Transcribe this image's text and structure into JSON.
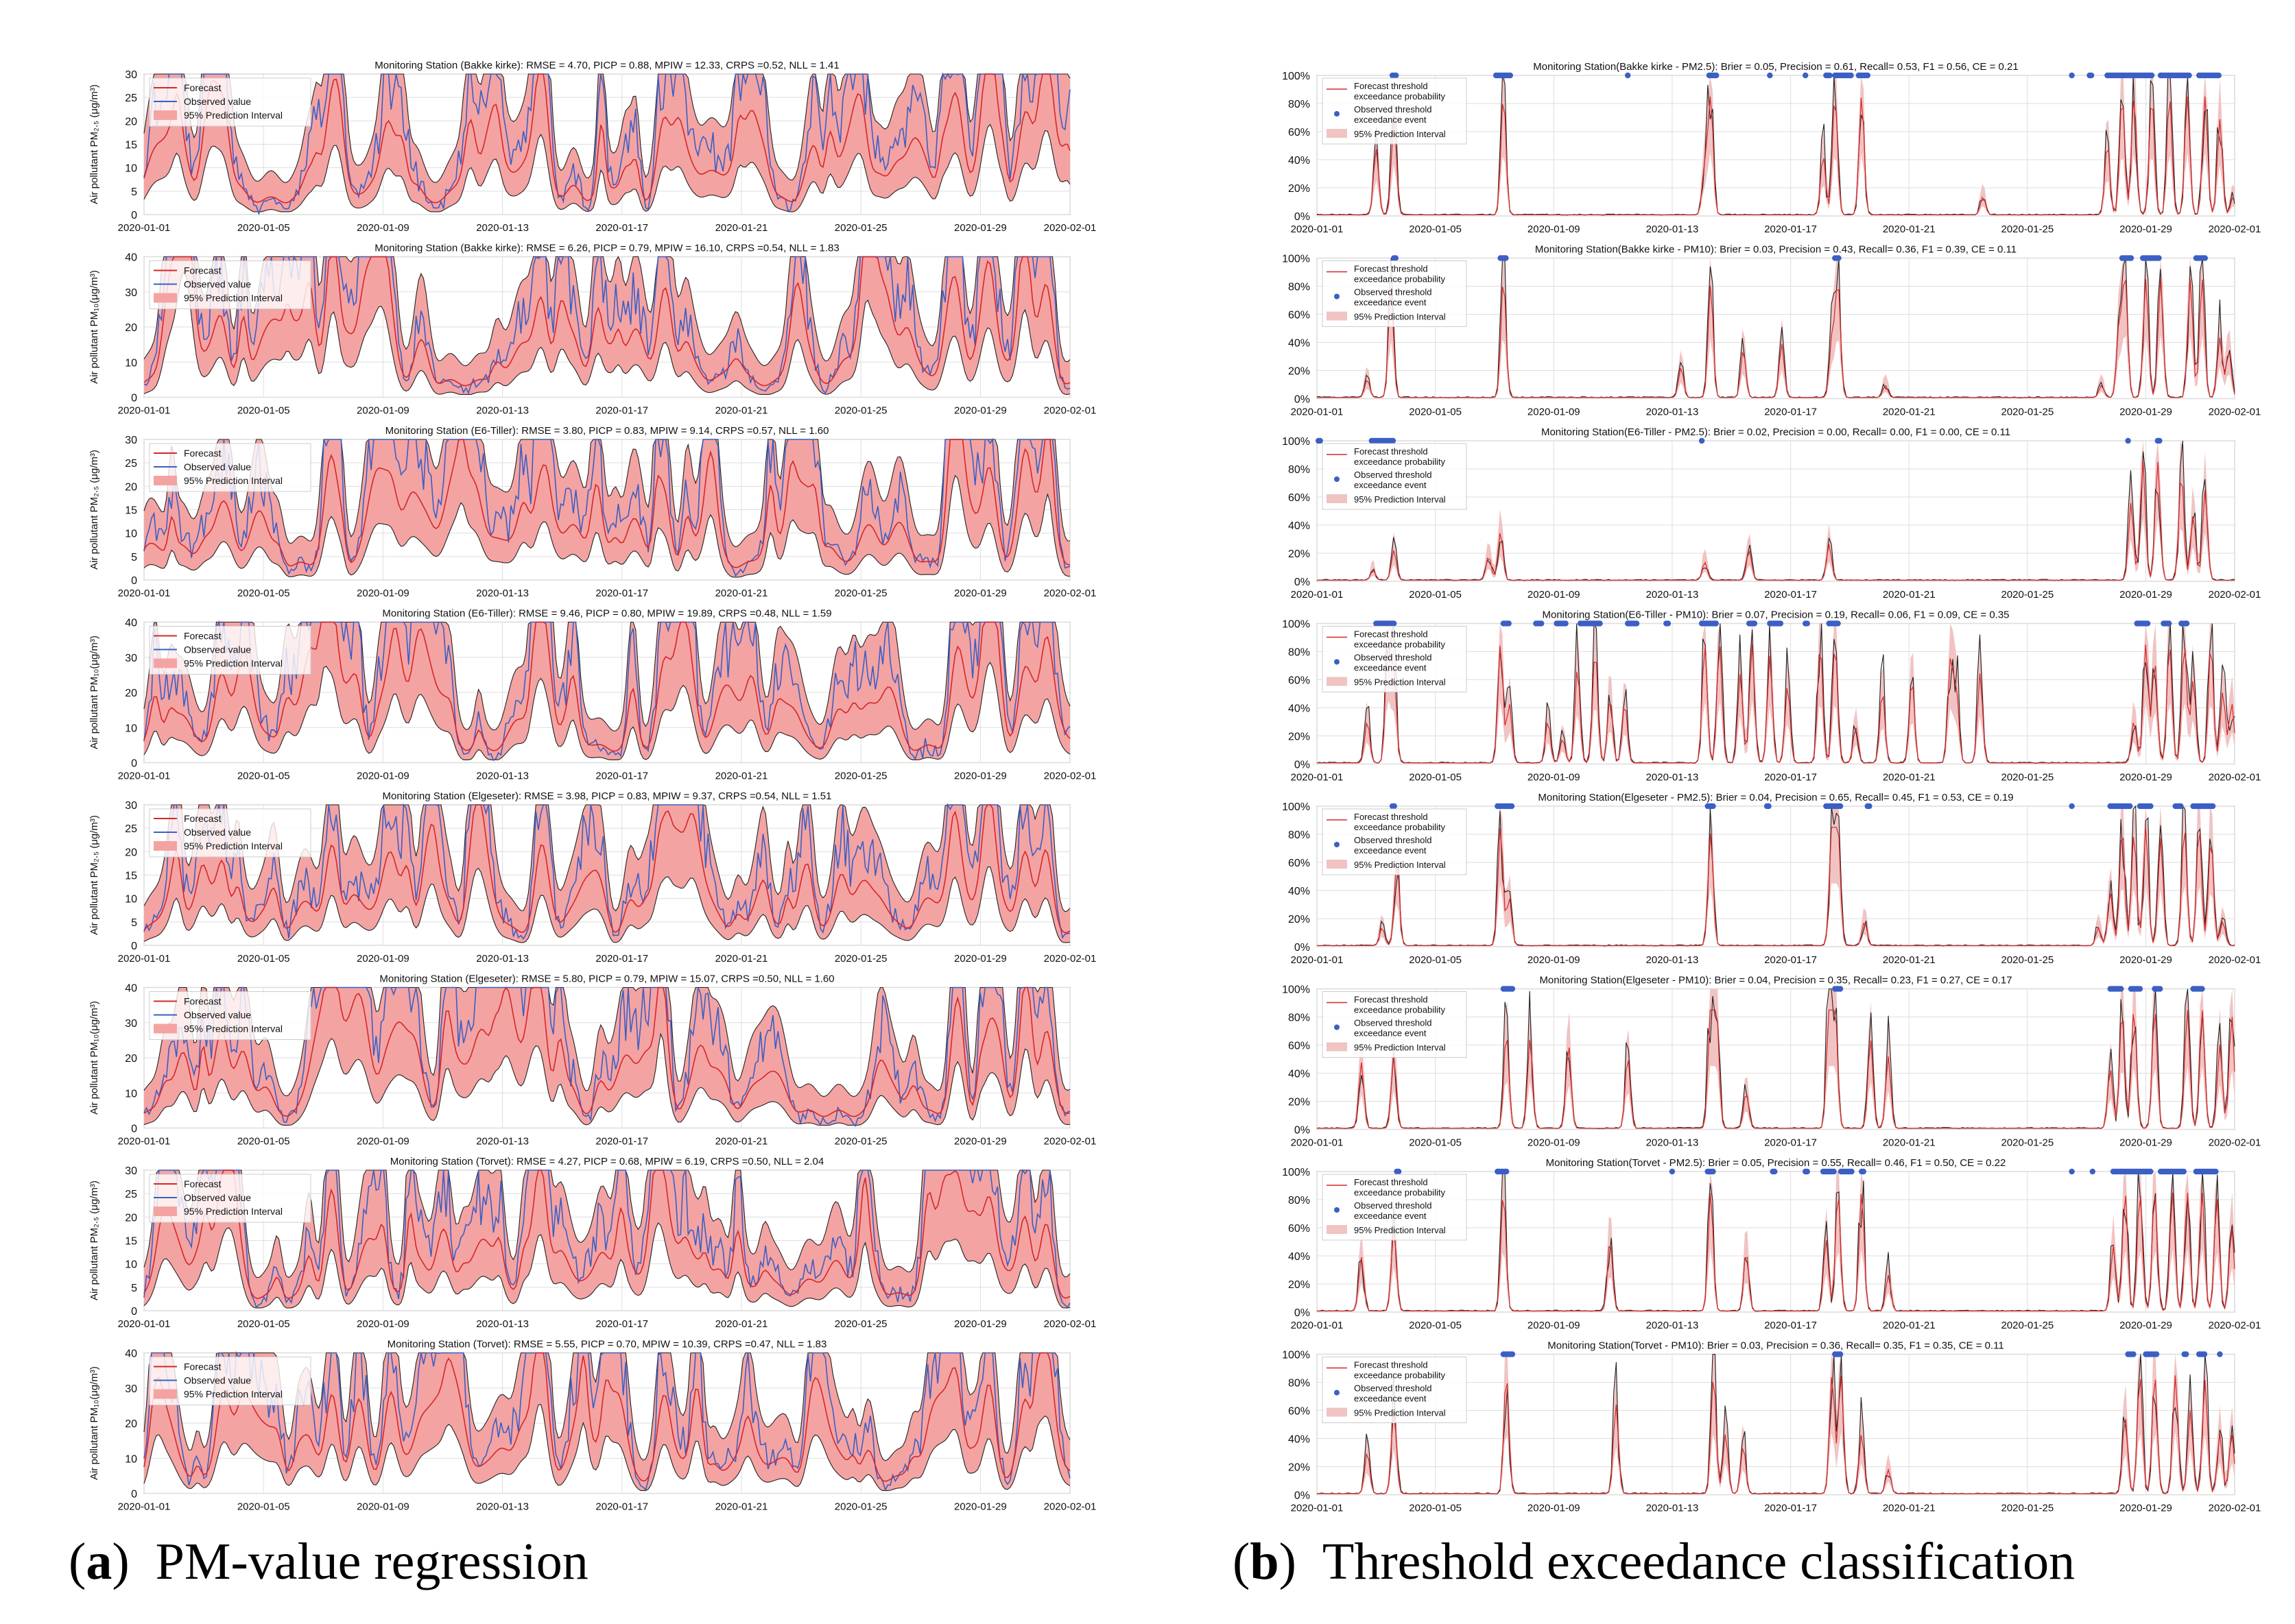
{
  "colors": {
    "forecast": "#d62728",
    "observed": "#3b5fc4",
    "band_a": "#f4a3a3",
    "band_b": "#f1c3c3",
    "grid": "#dedede",
    "frame": "#9a9a9a",
    "trace": "#222222"
  },
  "date_ticks": [
    "2020-01-01",
    "2020-01-05",
    "2020-01-09",
    "2020-01-13",
    "2020-01-17",
    "2020-01-21",
    "2020-01-25",
    "2020-01-29",
    "2020-02-01"
  ],
  "captions": {
    "a": {
      "letter": "a",
      "text": "PM-value regression"
    },
    "b": {
      "letter": "b",
      "text": "Threshold exceedance classification"
    }
  },
  "legend_a": {
    "forecast": "Forecast",
    "observed": "Observed value",
    "interval": "95% Prediction Interval"
  },
  "legend_b": {
    "forecast_1": "Forecast threshold",
    "forecast_2": "exceedance probability",
    "observed_1": "Observed threshold",
    "observed_2": "exceedance event",
    "interval": "95% Prediction Interval"
  },
  "chart_data": [
    {
      "type": "line",
      "panel": "a",
      "title": "Monitoring Station (Bakke kirke): RMSE = 4.70, PICP = 0.88, MPIW = 12.33, CRPS =0.52, NLL = 1.41",
      "ylabel": "Air pollutant PM₂.₅ (μg/m³)",
      "ylim": [
        0,
        30
      ],
      "yticks": [
        "0",
        "5",
        "10",
        "15",
        "20",
        "25",
        "30"
      ],
      "seed": 11
    },
    {
      "type": "line",
      "panel": "a",
      "title": "Monitoring Station (Bakke kirke): RMSE = 6.26, PICP = 0.79, MPIW = 16.10, CRPS =0.54, NLL = 1.83",
      "ylabel": "Air pollutant PM₁₀(μg/m³)",
      "ylim": [
        0,
        40
      ],
      "yticks": [
        "0",
        "10",
        "20",
        "30",
        "40"
      ],
      "seed": 12
    },
    {
      "type": "line",
      "panel": "a",
      "title": "Monitoring Station (E6-Tiller): RMSE = 3.80, PICP = 0.83, MPIW = 9.14, CRPS =0.57, NLL = 1.60",
      "ylabel": "Air pollutant PM₂.₅ (μg/m³)",
      "ylim": [
        0,
        30
      ],
      "yticks": [
        "0",
        "5",
        "10",
        "15",
        "20",
        "25",
        "30"
      ],
      "seed": 13
    },
    {
      "type": "line",
      "panel": "a",
      "title": "Monitoring Station (E6-Tiller): RMSE = 9.46, PICP = 0.80, MPIW = 19.89, CRPS =0.48, NLL = 1.59",
      "ylabel": "Air pollutant PM₁₀(μg/m³)",
      "ylim": [
        0,
        40
      ],
      "yticks": [
        "0",
        "10",
        "20",
        "30",
        "40"
      ],
      "seed": 14
    },
    {
      "type": "line",
      "panel": "a",
      "title": "Monitoring Station (Elgeseter): RMSE = 3.98, PICP = 0.83, MPIW = 9.37, CRPS =0.54, NLL = 1.51",
      "ylabel": "Air pollutant PM₂.₅ (μg/m³)",
      "ylim": [
        0,
        30
      ],
      "yticks": [
        "0",
        "5",
        "10",
        "15",
        "20",
        "25",
        "30"
      ],
      "seed": 15
    },
    {
      "type": "line",
      "panel": "a",
      "title": "Monitoring Station (Elgeseter): RMSE = 5.80, PICP = 0.79, MPIW = 15.07, CRPS =0.50, NLL = 1.60",
      "ylabel": "Air pollutant PM₁₀(μg/m³)",
      "ylim": [
        0,
        40
      ],
      "yticks": [
        "0",
        "10",
        "20",
        "30",
        "40"
      ],
      "seed": 16
    },
    {
      "type": "line",
      "panel": "a",
      "title": "Monitoring Station (Torvet): RMSE = 4.27, PICP = 0.68, MPIW = 6.19, CRPS =0.50, NLL = 2.04",
      "ylabel": "Air pollutant PM₂.₅ (μg/m³)",
      "ylim": [
        0,
        30
      ],
      "yticks": [
        "0",
        "5",
        "10",
        "15",
        "20",
        "25",
        "30"
      ],
      "seed": 17
    },
    {
      "type": "line",
      "panel": "a",
      "title": "Monitoring Station (Torvet): RMSE = 5.55, PICP = 0.70, MPIW = 10.39, CRPS =0.47, NLL = 1.83",
      "ylabel": "Air pollutant PM₁₀(μg/m³)",
      "ylim": [
        0,
        40
      ],
      "yticks": [
        "0",
        "10",
        "20",
        "30",
        "40"
      ],
      "seed": 18
    },
    {
      "type": "area",
      "panel": "b",
      "title": "Monitoring Station(Bakke kirke - PM2.5): Brier = 0.05, Precision = 0.61, Recall= 0.53, F1 = 0.56, CE = 0.21",
      "ylim": [
        0,
        100
      ],
      "yticks": [
        "0%",
        "20%",
        "40%",
        "60%",
        "80%",
        "100%"
      ],
      "seed": 21,
      "event_spans": [
        [
          2.55,
          2.7
        ],
        [
          6.05,
          6.55
        ],
        [
          10.5,
          10.55
        ],
        [
          13.25,
          13.5
        ],
        [
          15.3,
          15.35
        ],
        [
          16.5,
          16.55
        ],
        [
          17.2,
          17.35
        ],
        [
          17.5,
          18.05
        ],
        [
          18.3,
          18.6
        ],
        [
          25.5,
          25.55
        ],
        [
          26.1,
          26.2
        ],
        [
          26.7,
          28.2
        ],
        [
          28.5,
          29.5
        ],
        [
          29.8,
          30.5
        ]
      ],
      "peaks": [
        [
          2.0,
          0.55
        ],
        [
          2.6,
          0.8
        ],
        [
          6.3,
          1.0
        ],
        [
          13.3,
          1.0
        ],
        [
          13.1,
          0.4
        ],
        [
          17.1,
          0.5
        ],
        [
          17.5,
          1.0
        ],
        [
          18.4,
          1.0
        ],
        [
          22.5,
          0.15
        ],
        [
          26.7,
          0.6
        ],
        [
          27.2,
          1.0
        ],
        [
          27.6,
          1.0
        ],
        [
          28.2,
          1.0
        ],
        [
          28.8,
          1.0
        ],
        [
          29.4,
          1.0
        ],
        [
          30.0,
          1.0
        ],
        [
          30.5,
          0.8
        ],
        [
          30.95,
          0.15
        ]
      ]
    },
    {
      "type": "area",
      "panel": "b",
      "title": "Monitoring Station(Bakke kirke - PM10): Brier = 0.03, Precision = 0.43, Recall= 0.36, F1 = 0.39, CE = 0.11",
      "ylim": [
        0,
        100
      ],
      "yticks": [
        "0%",
        "20%",
        "40%",
        "60%",
        "80%",
        "100%"
      ],
      "seed": 22,
      "event_spans": [
        [
          2.6,
          2.7
        ],
        [
          6.2,
          6.4
        ],
        [
          17.5,
          17.65
        ],
        [
          27.2,
          27.5
        ],
        [
          27.9,
          28.45
        ],
        [
          29.7,
          30.0
        ]
      ],
      "peaks": [
        [
          1.7,
          0.15
        ],
        [
          2.5,
          0.9
        ],
        [
          6.3,
          1.0
        ],
        [
          12.3,
          0.25
        ],
        [
          13.3,
          0.95
        ],
        [
          14.4,
          0.4
        ],
        [
          15.7,
          0.45
        ],
        [
          17.4,
          0.5
        ],
        [
          17.6,
          0.95
        ],
        [
          19.2,
          0.1
        ],
        [
          26.5,
          0.1
        ],
        [
          27.1,
          0.6
        ],
        [
          27.3,
          1.0
        ],
        [
          28.0,
          1.0
        ],
        [
          28.5,
          1.0
        ],
        [
          29.5,
          1.0
        ],
        [
          29.9,
          1.0
        ],
        [
          30.5,
          0.5
        ],
        [
          30.8,
          0.4
        ]
      ]
    },
    {
      "type": "area",
      "panel": "b",
      "title": "Monitoring Station(E6-Tiller - PM2.5): Brier = 0.02, Precision = 0.00, Recall= 0.00, F1 = 0.00, CE = 0.11",
      "ylim": [
        0,
        100
      ],
      "yticks": [
        "0%",
        "20%",
        "40%",
        "60%",
        "80%",
        "100%"
      ],
      "seed": 23,
      "event_spans": [
        [
          0.05,
          0.15
        ],
        [
          1.85,
          2.6
        ],
        [
          13.0,
          13.05
        ],
        [
          27.4,
          27.45
        ],
        [
          28.4,
          28.5
        ]
      ],
      "peaks": [
        [
          1.9,
          0.08
        ],
        [
          2.6,
          0.25
        ],
        [
          5.8,
          0.2
        ],
        [
          6.2,
          0.4
        ],
        [
          13.1,
          0.15
        ],
        [
          14.6,
          0.25
        ],
        [
          17.3,
          0.3
        ],
        [
          27.5,
          0.65
        ],
        [
          27.9,
          1.0
        ],
        [
          28.4,
          1.0
        ],
        [
          29.2,
          0.9
        ],
        [
          29.6,
          0.55
        ],
        [
          30.0,
          0.75
        ]
      ]
    },
    {
      "type": "area",
      "panel": "b",
      "title": "Monitoring Station(E6-Tiller - PM10): Brier = 0.07, Precision = 0.19, Recall= 0.06, F1 = 0.09, CE = 0.35",
      "ylim": [
        0,
        100
      ],
      "yticks": [
        "0%",
        "20%",
        "40%",
        "60%",
        "80%",
        "100%"
      ],
      "seed": 24,
      "event_spans": [
        [
          2.0,
          2.6
        ],
        [
          6.3,
          6.5
        ],
        [
          7.4,
          7.6
        ],
        [
          8.1,
          8.4
        ],
        [
          8.9,
          9.6
        ],
        [
          10.5,
          10.8
        ],
        [
          11.8,
          11.9
        ],
        [
          13.0,
          13.5
        ],
        [
          14.6,
          14.8
        ],
        [
          15.3,
          15.7
        ],
        [
          16.5,
          16.6
        ],
        [
          17.3,
          17.6
        ],
        [
          27.7,
          28.1
        ],
        [
          28.6,
          28.8
        ],
        [
          29.2,
          29.4
        ]
      ],
      "peaks": [
        [
          1.7,
          0.35
        ],
        [
          2.4,
          1.0
        ],
        [
          2.6,
          0.75
        ],
        [
          6.2,
          1.0
        ],
        [
          6.5,
          0.5
        ],
        [
          7.8,
          0.35
        ],
        [
          8.3,
          0.2
        ],
        [
          8.8,
          0.8
        ],
        [
          9.4,
          0.95
        ],
        [
          9.9,
          0.55
        ],
        [
          10.4,
          0.5
        ],
        [
          13.1,
          1.0
        ],
        [
          13.6,
          1.0
        ],
        [
          14.3,
          0.75
        ],
        [
          14.7,
          1.0
        ],
        [
          15.3,
          0.9
        ],
        [
          15.9,
          0.65
        ],
        [
          17.0,
          1.0
        ],
        [
          17.5,
          1.0
        ],
        [
          18.2,
          0.3
        ],
        [
          19.1,
          0.6
        ],
        [
          20.1,
          0.7
        ],
        [
          21.4,
          0.85
        ],
        [
          21.6,
          0.6
        ],
        [
          22.4,
          0.75
        ],
        [
          27.6,
          0.35
        ],
        [
          28.0,
          1.0
        ],
        [
          28.3,
          0.85
        ],
        [
          28.8,
          1.0
        ],
        [
          29.3,
          1.0
        ],
        [
          29.6,
          0.7
        ],
        [
          30.2,
          1.0
        ],
        [
          30.6,
          0.6
        ],
        [
          30.9,
          0.5
        ]
      ]
    },
    {
      "type": "area",
      "panel": "b",
      "title": "Monitoring Station(Elgeseter - PM2.5): Brier = 0.04, Precision = 0.65, Recall= 0.45, F1 = 0.53, CE = 0.19",
      "ylim": [
        0,
        100
      ],
      "yticks": [
        "0%",
        "20%",
        "40%",
        "60%",
        "80%",
        "100%"
      ],
      "seed": 25,
      "event_spans": [
        [
          2.55,
          2.65
        ],
        [
          6.1,
          6.6
        ],
        [
          13.2,
          13.4
        ],
        [
          15.2,
          15.3
        ],
        [
          17.2,
          17.7
        ],
        [
          18.6,
          18.7
        ],
        [
          25.5,
          25.55
        ],
        [
          26.8,
          27.5
        ],
        [
          27.8,
          28.2
        ],
        [
          29.0,
          29.2
        ],
        [
          29.6,
          30.3
        ]
      ],
      "peaks": [
        [
          2.2,
          0.15
        ],
        [
          2.7,
          0.7
        ],
        [
          6.2,
          1.0
        ],
        [
          6.5,
          0.4
        ],
        [
          13.3,
          0.95
        ],
        [
          17.4,
          1.0
        ],
        [
          17.6,
          0.95
        ],
        [
          18.5,
          0.2
        ],
        [
          26.4,
          0.15
        ],
        [
          26.8,
          0.45
        ],
        [
          27.2,
          1.0
        ],
        [
          27.6,
          0.95
        ],
        [
          28.0,
          1.0
        ],
        [
          28.5,
          0.9
        ],
        [
          29.3,
          1.0
        ],
        [
          29.8,
          1.0
        ],
        [
          30.2,
          0.9
        ],
        [
          30.6,
          0.2
        ]
      ]
    },
    {
      "type": "area",
      "panel": "b",
      "title": "Monitoring Station(Elgeseter - PM10): Brier = 0.04, Precision = 0.35, Recall= 0.23, F1 = 0.27, CE = 0.17",
      "ylim": [
        0,
        100
      ],
      "yticks": [
        "0%",
        "20%",
        "40%",
        "60%",
        "80%",
        "100%"
      ],
      "seed": 26,
      "event_spans": [
        [
          6.3,
          6.6
        ],
        [
          17.5,
          17.7
        ],
        [
          26.8,
          27.2
        ],
        [
          27.5,
          27.8
        ],
        [
          28.3,
          28.5
        ],
        [
          29.6,
          29.9
        ]
      ],
      "peaks": [
        [
          1.5,
          0.55
        ],
        [
          2.6,
          0.6
        ],
        [
          6.4,
          0.8
        ],
        [
          7.2,
          0.75
        ],
        [
          8.5,
          0.7
        ],
        [
          10.5,
          0.6
        ],
        [
          13.3,
          1.0
        ],
        [
          13.5,
          0.95
        ],
        [
          14.5,
          0.3
        ],
        [
          17.3,
          1.0
        ],
        [
          17.5,
          1.0
        ],
        [
          18.7,
          0.75
        ],
        [
          19.3,
          0.6
        ],
        [
          26.8,
          0.5
        ],
        [
          27.2,
          1.0
        ],
        [
          27.6,
          1.0
        ],
        [
          28.3,
          1.0
        ],
        [
          29.4,
          1.0
        ],
        [
          29.9,
          1.0
        ],
        [
          30.5,
          0.7
        ],
        [
          30.9,
          0.95
        ]
      ]
    },
    {
      "type": "area",
      "panel": "b",
      "title": "Monitoring Station(Torvet - PM2.5): Brier = 0.05, Precision = 0.55, Recall= 0.46, F1 = 0.50, CE = 0.22",
      "ylim": [
        0,
        100
      ],
      "yticks": [
        "0%",
        "20%",
        "40%",
        "60%",
        "80%",
        "100%"
      ],
      "seed": 27,
      "event_spans": [
        [
          2.7,
          2.8
        ],
        [
          6.1,
          6.4
        ],
        [
          12.0,
          12.05
        ],
        [
          13.2,
          13.4
        ],
        [
          15.4,
          15.5
        ],
        [
          16.5,
          16.6
        ],
        [
          17.1,
          17.5
        ],
        [
          17.7,
          18.1
        ],
        [
          18.4,
          18.5
        ],
        [
          25.5,
          25.55
        ],
        [
          26.2,
          26.25
        ],
        [
          26.9,
          28.2
        ],
        [
          28.5,
          29.3
        ],
        [
          29.7,
          30.4
        ]
      ],
      "peaks": [
        [
          1.5,
          0.45
        ],
        [
          2.6,
          0.7
        ],
        [
          6.3,
          1.0
        ],
        [
          9.9,
          0.6
        ],
        [
          13.3,
          1.0
        ],
        [
          14.5,
          0.5
        ],
        [
          17.2,
          0.6
        ],
        [
          17.6,
          1.0
        ],
        [
          18.4,
          1.0
        ],
        [
          19.3,
          0.3
        ],
        [
          26.9,
          0.55
        ],
        [
          27.3,
          1.0
        ],
        [
          27.8,
          1.0
        ],
        [
          28.3,
          1.0
        ],
        [
          28.9,
          1.0
        ],
        [
          29.4,
          1.0
        ],
        [
          29.9,
          1.0
        ],
        [
          30.4,
          0.95
        ],
        [
          30.9,
          0.7
        ]
      ]
    },
    {
      "type": "area",
      "panel": "b",
      "title": "Monitoring Station(Torvet - PM10): Brier = 0.03, Precision = 0.36, Recall= 0.35, F1 = 0.35, CE = 0.11",
      "ylim": [
        0,
        100
      ],
      "yticks": [
        "0%",
        "20%",
        "40%",
        "60%",
        "80%",
        "100%"
      ],
      "seed": 28,
      "event_spans": [
        [
          6.3,
          6.6
        ],
        [
          17.5,
          17.7
        ],
        [
          27.4,
          27.6
        ],
        [
          28.0,
          28.4
        ],
        [
          29.3,
          29.4
        ],
        [
          29.8,
          30.0
        ],
        [
          30.5,
          30.55
        ]
      ],
      "peaks": [
        [
          1.7,
          0.35
        ],
        [
          2.6,
          0.7
        ],
        [
          6.4,
          1.0
        ],
        [
          10.1,
          0.75
        ],
        [
          13.4,
          1.0
        ],
        [
          13.8,
          0.5
        ],
        [
          14.4,
          0.4
        ],
        [
          17.4,
          1.0
        ],
        [
          17.7,
          1.0
        ],
        [
          18.4,
          0.5
        ],
        [
          19.3,
          0.2
        ],
        [
          27.3,
          0.65
        ],
        [
          27.8,
          1.0
        ],
        [
          28.3,
          1.0
        ],
        [
          29.0,
          1.0
        ],
        [
          29.5,
          0.7
        ],
        [
          30.0,
          0.95
        ],
        [
          30.5,
          0.5
        ],
        [
          30.9,
          0.5
        ]
      ]
    }
  ]
}
